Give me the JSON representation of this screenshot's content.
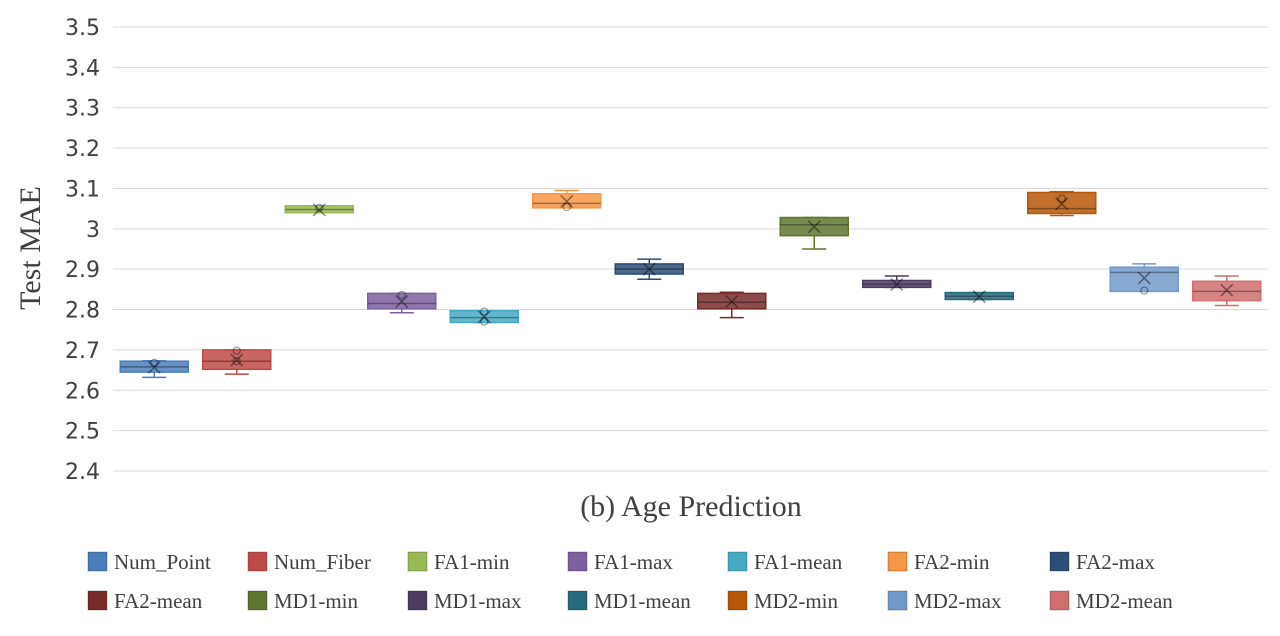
{
  "chart_data": {
    "type": "box",
    "title": "(b) Age Prediction",
    "xlabel": "(b) Age Prediction",
    "ylabel": "Test MAE",
    "ylim": [
      2.4,
      3.5
    ],
    "yticks": [
      "2.4",
      "2.5",
      "2.6",
      "2.7",
      "2.8",
      "2.9",
      "3",
      "3.1",
      "3.2",
      "3.3",
      "3.4",
      "3.5"
    ],
    "grid": true,
    "legend_position": "bottom",
    "series": [
      {
        "name": "Num_Point",
        "color": "#4a7ebb",
        "min": 2.632,
        "q1": 2.645,
        "median": 2.658,
        "q3": 2.672,
        "max": 2.673,
        "mean": 2.657,
        "points": [
          2.668
        ]
      },
      {
        "name": "Num_Fiber",
        "color": "#be4b48",
        "min": 2.64,
        "q1": 2.652,
        "median": 2.672,
        "q3": 2.7,
        "max": 2.7,
        "mean": 2.675,
        "points": [
          2.698,
          2.672
        ]
      },
      {
        "name": "FA1-min",
        "color": "#98b954",
        "min": 3.04,
        "q1": 3.04,
        "median": 3.048,
        "q3": 3.057,
        "max": 3.057,
        "mean": 3.047,
        "points": [
          3.052
        ]
      },
      {
        "name": "FA1-max",
        "color": "#7d60a0",
        "min": 2.792,
        "q1": 2.802,
        "median": 2.815,
        "q3": 2.84,
        "max": 2.84,
        "mean": 2.82,
        "points": [
          2.836
        ]
      },
      {
        "name": "FA1-mean",
        "color": "#46aac5",
        "min": 2.768,
        "q1": 2.768,
        "median": 2.78,
        "q3": 2.797,
        "max": 2.797,
        "mean": 2.782,
        "points": [
          2.795,
          2.77
        ]
      },
      {
        "name": "FA2-min",
        "color": "#f79646",
        "min": 3.052,
        "q1": 3.052,
        "median": 3.063,
        "q3": 3.087,
        "max": 3.095,
        "mean": 3.068,
        "points": [
          3.054
        ]
      },
      {
        "name": "FA2-max",
        "color": "#2c4d75",
        "min": 2.875,
        "q1": 2.888,
        "median": 2.9,
        "q3": 2.913,
        "max": 2.925,
        "mean": 2.9,
        "points": []
      },
      {
        "name": "FA2-mean",
        "color": "#772c2a",
        "min": 2.78,
        "q1": 2.802,
        "median": 2.818,
        "q3": 2.84,
        "max": 2.843,
        "mean": 2.82,
        "points": []
      },
      {
        "name": "MD1-min",
        "color": "#5f7530",
        "min": 2.95,
        "q1": 2.983,
        "median": 3.01,
        "q3": 3.028,
        "max": 3.028,
        "mean": 3.005,
        "points": []
      },
      {
        "name": "MD1-max",
        "color": "#4d3b62",
        "min": 2.855,
        "q1": 2.855,
        "median": 2.863,
        "q3": 2.872,
        "max": 2.883,
        "mean": 2.862,
        "points": []
      },
      {
        "name": "MD1-mean",
        "color": "#276a7c",
        "min": 2.825,
        "q1": 2.825,
        "median": 2.833,
        "q3": 2.842,
        "max": 2.842,
        "mean": 2.832,
        "points": []
      },
      {
        "name": "MD2-min",
        "color": "#b65708",
        "min": 3.033,
        "q1": 3.038,
        "median": 3.05,
        "q3": 3.09,
        "max": 3.092,
        "mean": 3.062,
        "points": [
          3.075
        ]
      },
      {
        "name": "MD2-max",
        "color": "#729aca",
        "min": 2.845,
        "q1": 2.845,
        "median": 2.892,
        "q3": 2.905,
        "max": 2.913,
        "mean": 2.878,
        "points": [
          2.847
        ]
      },
      {
        "name": "MD2-mean",
        "color": "#d0706e",
        "min": 2.81,
        "q1": 2.822,
        "median": 2.845,
        "q3": 2.87,
        "max": 2.883,
        "mean": 2.848,
        "points": []
      }
    ]
  }
}
